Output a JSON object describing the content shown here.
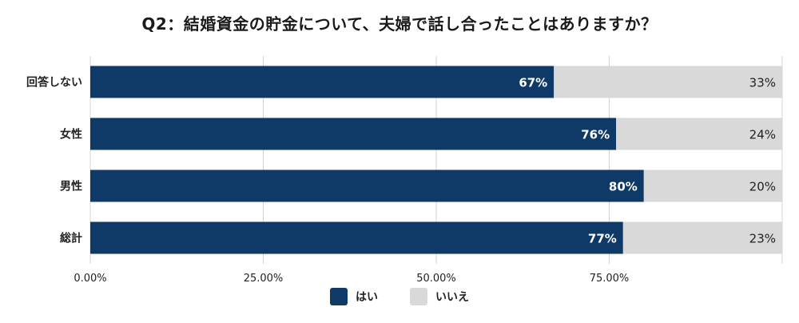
{
  "chart_data": {
    "type": "bar",
    "orientation": "horizontal",
    "stacked": true,
    "title": "Q2：結婚資金の貯金について、夫婦で話し合ったことはありますか？",
    "categories": [
      "回答しない",
      "女性",
      "男性",
      "総計"
    ],
    "series": [
      {
        "name": "はい",
        "values": [
          67,
          76,
          80,
          77
        ],
        "labels": [
          "67%",
          "76%",
          "80%",
          "77%"
        ],
        "color": "#0f3966"
      },
      {
        "name": "いいえ",
        "values": [
          33,
          24,
          20,
          23
        ],
        "labels": [
          "33%",
          "24%",
          "20%",
          "23%"
        ],
        "color": "#d9d9d9"
      }
    ],
    "xlim": [
      0,
      100
    ],
    "x_ticks": [
      0,
      25,
      50,
      75
    ],
    "x_tick_labels": [
      "0.00%",
      "25.00%",
      "50.00%",
      "75.00%"
    ],
    "grid": true,
    "legend_position": "bottom",
    "xlabel": "",
    "ylabel": ""
  }
}
